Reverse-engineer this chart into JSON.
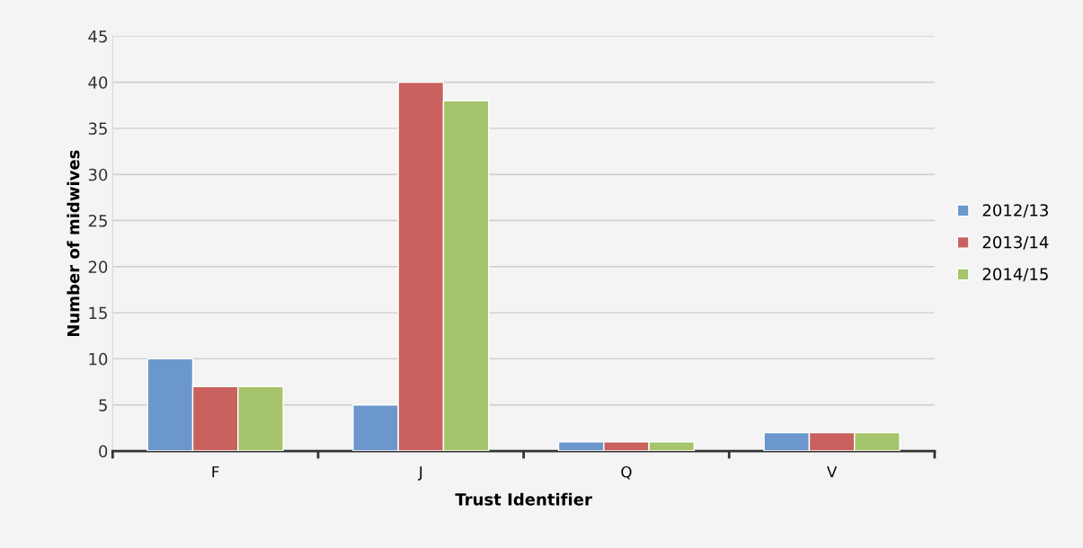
{
  "chart_data": {
    "type": "bar",
    "xlabel": "Trust Identifier",
    "ylabel": "Number of midwives",
    "categories": [
      "F",
      "J",
      "Q",
      "V"
    ],
    "series": [
      {
        "name": "2012/13",
        "color": "#6b97cd",
        "values": [
          10,
          5,
          1,
          2
        ]
      },
      {
        "name": "2013/14",
        "color": "#c9625f",
        "values": [
          7,
          40,
          1,
          2
        ]
      },
      {
        "name": "2014/15",
        "color": "#a5c46b",
        "values": [
          7,
          38,
          1,
          2
        ]
      }
    ],
    "ylim": [
      0,
      45
    ],
    "yticks": [
      0,
      5,
      10,
      15,
      20,
      25,
      30,
      35,
      40,
      45
    ],
    "grid": "y",
    "legend": "right"
  }
}
